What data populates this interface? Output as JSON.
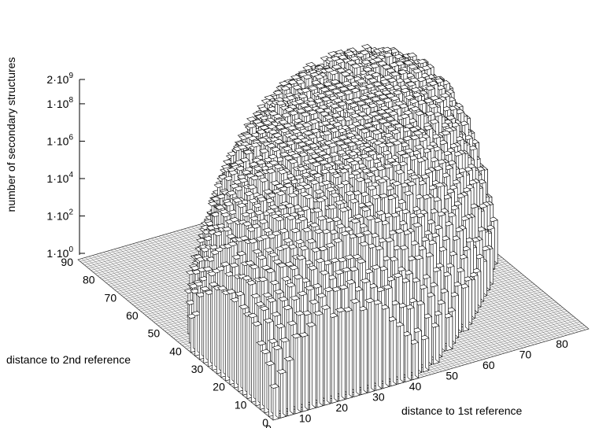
{
  "chart_data": {
    "type": "bar3d",
    "zlabel": "number of secondary structures",
    "xlabel": "distance to 1st reference",
    "ylabel": "distance to 2nd reference",
    "z_scale": "log10",
    "z_ticks": [
      {
        "mantissa": "1",
        "exponent": "0",
        "value": 1
      },
      {
        "mantissa": "1",
        "exponent": "2",
        "value": 100
      },
      {
        "mantissa": "1",
        "exponent": "4",
        "value": 10000
      },
      {
        "mantissa": "1",
        "exponent": "6",
        "value": 1000000
      },
      {
        "mantissa": "1",
        "exponent": "8",
        "value": 100000000
      },
      {
        "mantissa": "2",
        "exponent": "9",
        "value": 2000000000
      }
    ],
    "x_ticks": [
      "0",
      "10",
      "20",
      "30",
      "40",
      "50",
      "60",
      "70",
      "80"
    ],
    "y_ticks": [
      "0",
      "10",
      "20",
      "30",
      "40",
      "50",
      "60",
      "70",
      "80",
      "90"
    ],
    "x_range": [
      0,
      86
    ],
    "y_range": [
      0,
      90
    ],
    "z_range": [
      1,
      2000000000
    ],
    "surface_description_values": {
      "peak_log10_count": 9.3,
      "min_log10_count_on_support": 0
    }
  }
}
